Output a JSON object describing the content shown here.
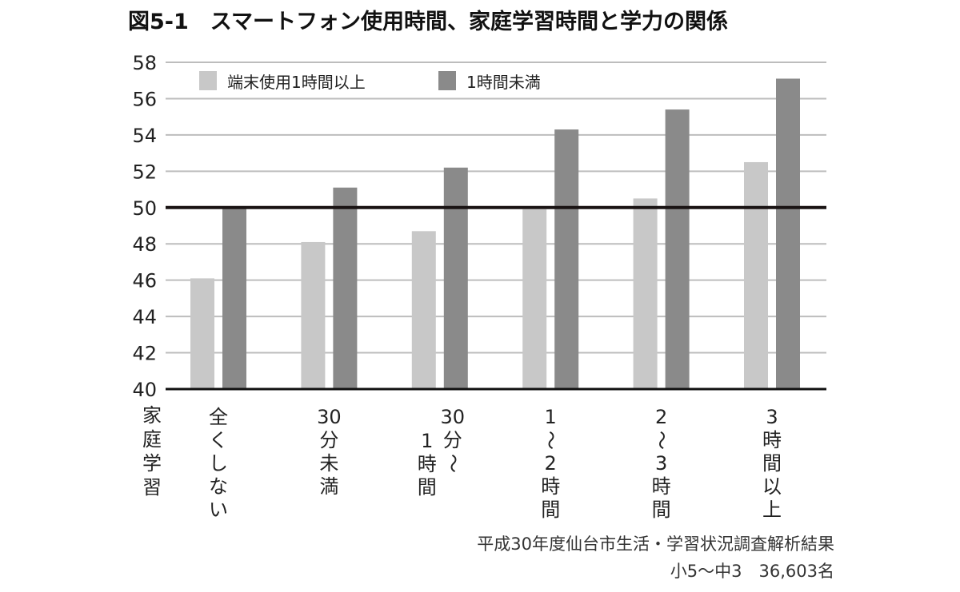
{
  "chart_data": {
    "type": "bar",
    "title": "図5-1　スマートフォン使用時間、家庭学習時間と学力の関係",
    "xlabel": "家庭学習",
    "ylabel": "",
    "ylim": [
      40,
      58
    ],
    "yticks": [
      40,
      42,
      44,
      46,
      48,
      50,
      52,
      54,
      56,
      58
    ],
    "reference_line": 50,
    "grid": true,
    "legend_position": "top-left",
    "categories": [
      "全くしない",
      "30分未満",
      "30分〜1時間",
      "1〜2時間",
      "2〜3時間",
      "3時間以上"
    ],
    "series": [
      {
        "name": "端末使用1時間以上",
        "color": "#c8c8c8",
        "values": [
          46.1,
          48.1,
          48.7,
          49.9,
          50.5,
          52.5
        ]
      },
      {
        "name": "1時間未満",
        "color": "#8a8a8a",
        "values": [
          50.0,
          51.1,
          52.2,
          54.3,
          55.4,
          57.1
        ]
      }
    ],
    "source": [
      "平成30年度仙台市生活・学習状況調査解析結果",
      "小5〜中3　36,603名"
    ]
  }
}
